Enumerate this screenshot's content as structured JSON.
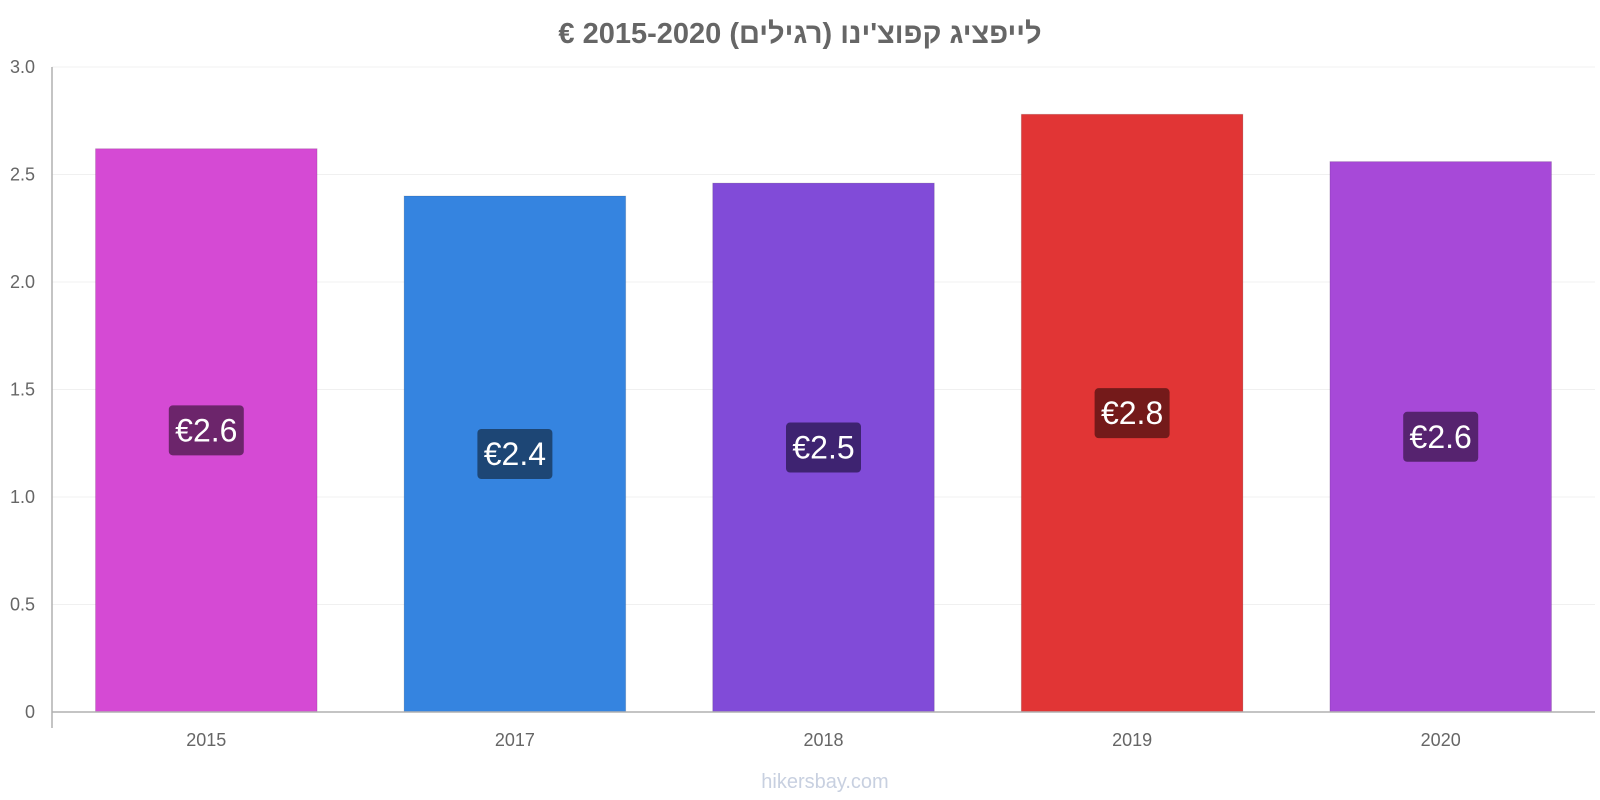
{
  "chart_data": {
    "type": "bar",
    "title": "לייפציג קפוצ'ינו (רגילים) 2015-2020 €",
    "categories": [
      "2015",
      "2017",
      "2018",
      "2019",
      "2020"
    ],
    "values": [
      2.62,
      2.4,
      2.46,
      2.78,
      2.56
    ],
    "data_labels": [
      "€2.6",
      "€2.4",
      "€2.5",
      "€2.8",
      "€2.6"
    ],
    "bar_colors": [
      "#d54ad4",
      "#3584e0",
      "#814bd8",
      "#e13535",
      "#a749d8"
    ],
    "label_bg_colors": [
      "#6c256b",
      "#1d4675",
      "#3e2371",
      "#741a1a",
      "#56236f"
    ],
    "ylim": [
      0,
      3.0
    ],
    "yticks": [
      0,
      0.5,
      1.0,
      1.5,
      2.0,
      2.5,
      3.0
    ],
    "ytick_labels": [
      "0",
      "0.5",
      "1.0",
      "1.5",
      "2.0",
      "2.5",
      "3.0"
    ],
    "xlabel": "",
    "ylabel": "",
    "grid": true,
    "legend": "none"
  },
  "watermark": "hikersbay.com"
}
